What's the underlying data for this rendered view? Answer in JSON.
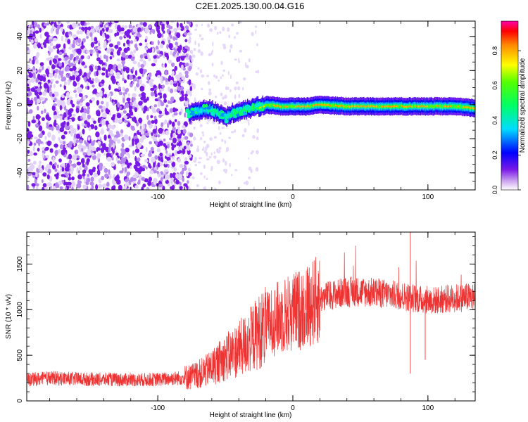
{
  "title": "C2E1.2025.130.00.04.G16",
  "chart_data": [
    {
      "type": "heatmap",
      "xlabel": "Height of straight line (km)",
      "ylabel": "Frequency (Hz)",
      "xlim": [
        -197,
        135
      ],
      "ylim": [
        -50,
        49
      ],
      "xticks": [
        -100,
        0,
        100
      ],
      "yticks": [
        -40,
        -20,
        0,
        20,
        40
      ],
      "xtick_labels": [
        "-100",
        "0",
        "100"
      ],
      "ytick_labels": [
        "-40",
        "-20",
        "0",
        "20",
        "40"
      ],
      "colorbar": {
        "label": "Normalized spectral amplitude",
        "range": [
          0,
          0.97
        ],
        "ticks": [
          0.0,
          0.2,
          0.4,
          0.6,
          0.8
        ],
        "tick_labels": [
          "0.0",
          "0.2",
          "0.4",
          "0.6",
          "0.8"
        ]
      },
      "ridge": {
        "x": [
          -77,
          -70,
          -65,
          -60,
          -55,
          -50,
          -45,
          -40,
          -35,
          -30,
          -25,
          -20,
          -10,
          0,
          10,
          20,
          40,
          60,
          80,
          100,
          120,
          135
        ],
        "frequency": [
          -5,
          -4,
          -3,
          -3,
          -5,
          -8,
          -5,
          -4,
          -3,
          -2,
          -1,
          0,
          -1,
          -1,
          -1,
          0,
          -1,
          -1,
          -1,
          -1,
          -1,
          -2
        ],
        "amplitude": [
          0.3,
          0.35,
          0.4,
          0.4,
          0.4,
          0.35,
          0.45,
          0.5,
          0.5,
          0.6,
          0.7,
          0.8,
          0.85,
          0.9,
          0.9,
          0.9,
          0.92,
          0.92,
          0.92,
          0.92,
          0.9,
          0.85
        ]
      },
      "noise_region_x": [
        -197,
        -75
      ]
    },
    {
      "type": "line",
      "xlabel": "Height of straight line (km)",
      "ylabel": "SNR (10 * v/v)",
      "xlim": [
        -197,
        135
      ],
      "ylim": [
        0,
        1850
      ],
      "xticks": [
        -100,
        0,
        100
      ],
      "yticks": [
        0,
        500,
        1000,
        1500
      ],
      "xtick_labels": [
        "-100",
        "0",
        "100"
      ],
      "ytick_labels": [
        "0",
        "500",
        "1000",
        "1500"
      ],
      "color": "#ee3333",
      "series": [
        {
          "x": [
            -197,
            -180,
            -160,
            -140,
            -120,
            -100,
            -85,
            -75,
            -65,
            -55,
            -45,
            -35,
            -25,
            -15,
            -5,
            5,
            15,
            25,
            35,
            45,
            55,
            65,
            75,
            85,
            95,
            105,
            115,
            125,
            135
          ],
          "values": [
            230,
            250,
            240,
            235,
            230,
            235,
            250,
            265,
            320,
            420,
            520,
            620,
            760,
            880,
            950,
            1000,
            1080,
            1150,
            1180,
            1200,
            1190,
            1180,
            1160,
            1140,
            1110,
            1100,
            1120,
            1130,
            1140
          ]
        }
      ]
    }
  ]
}
